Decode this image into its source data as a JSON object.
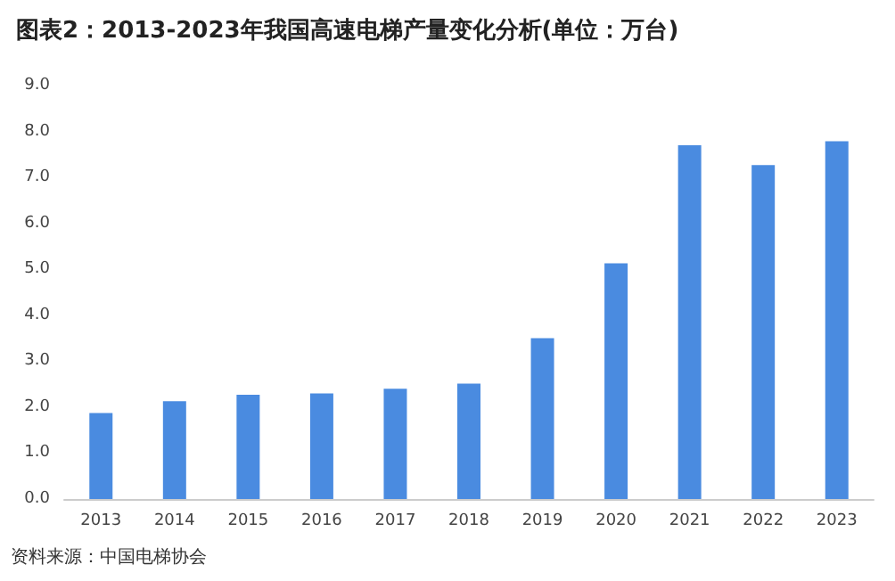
{
  "chart_data": {
    "type": "bar",
    "title": "图表2：2013-2023年我国高速电梯产量变化分析(单位：万台)",
    "categories": [
      "2013",
      "2014",
      "2015",
      "2016",
      "2017",
      "2018",
      "2019",
      "2020",
      "2021",
      "2022",
      "2023"
    ],
    "values": [
      1.87,
      2.13,
      2.27,
      2.3,
      2.4,
      2.51,
      3.5,
      5.13,
      7.7,
      7.27,
      7.79
    ],
    "color": "#4a8be0",
    "ylim": [
      0,
      9
    ],
    "yticks": [
      {
        "value": 0,
        "label": "0.0"
      },
      {
        "value": 1,
        "label": "1.0"
      },
      {
        "value": 2,
        "label": "2.0"
      },
      {
        "value": 3,
        "label": "3.0"
      },
      {
        "value": 4,
        "label": "4.0"
      },
      {
        "value": 5,
        "label": "5.0"
      },
      {
        "value": 6,
        "label": "6.0"
      },
      {
        "value": 7,
        "label": "7.0"
      },
      {
        "value": 8,
        "label": "8.0"
      },
      {
        "value": 9,
        "label": "9.0"
      }
    ],
    "grid": false,
    "annotations": [
      "资料来源：中国电梯协会"
    ]
  }
}
